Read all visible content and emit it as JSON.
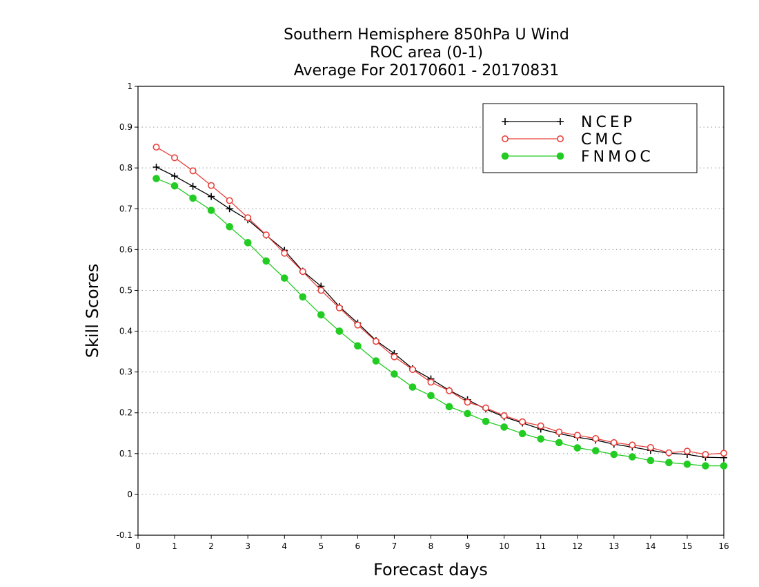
{
  "chart_data": {
    "type": "line",
    "title_lines": [
      "Southern Hemisphere 850hPa U Wind",
      "ROC area (0-1)",
      "Average For 20170601 - 20170831"
    ],
    "xlabel": "Forecast days",
    "ylabel": "Skill Scores",
    "xlim": [
      0,
      16
    ],
    "ylim": [
      -0.1,
      1
    ],
    "x_ticks": [
      0,
      1,
      2,
      3,
      4,
      5,
      6,
      7,
      8,
      9,
      10,
      11,
      12,
      13,
      14,
      15,
      16
    ],
    "x_tick_labels": [
      "0",
      "1",
      "2",
      "3",
      "4",
      "5",
      "6",
      "7",
      "8",
      "9",
      "10",
      "11",
      "12",
      "13",
      "14",
      "15",
      "16"
    ],
    "y_ticks": [
      -0.1,
      0,
      0.1,
      0.2,
      0.3,
      0.4,
      0.5,
      0.6,
      0.7,
      0.8,
      0.9,
      1
    ],
    "y_tick_labels": [
      "-0.1",
      "0",
      "0.1",
      "0.2",
      "0.3",
      "0.4",
      "0.5",
      "0.6",
      "0.7",
      "0.8",
      "0.9",
      "1"
    ],
    "grid": "dotted horizontal",
    "legend_position": "top-right",
    "x": [
      0.5,
      1,
      1.5,
      2,
      2.5,
      3,
      3.5,
      4,
      4.5,
      5,
      5.5,
      6,
      6.5,
      7,
      7.5,
      8,
      8.5,
      9,
      9.5,
      10,
      10.5,
      11,
      11.5,
      12,
      12.5,
      13,
      13.5,
      14,
      14.5,
      15,
      15.5,
      16
    ],
    "series": [
      {
        "name": "NCEP",
        "color": "#000000",
        "marker": "plus",
        "values": [
          0.802,
          0.78,
          0.755,
          0.73,
          0.7,
          0.673,
          0.635,
          0.598,
          0.547,
          0.51,
          0.46,
          0.42,
          0.377,
          0.345,
          0.308,
          0.283,
          0.255,
          0.232,
          0.209,
          0.19,
          0.175,
          0.16,
          0.149,
          0.14,
          0.133,
          0.123,
          0.116,
          0.108,
          0.101,
          0.098,
          0.091,
          0.09
        ]
      },
      {
        "name": "CMC",
        "color": "#e8413c",
        "marker": "open-circle",
        "values": [
          0.851,
          0.825,
          0.793,
          0.757,
          0.72,
          0.678,
          0.636,
          0.591,
          0.546,
          0.5,
          0.457,
          0.415,
          0.375,
          0.337,
          0.306,
          0.275,
          0.254,
          0.226,
          0.212,
          0.193,
          0.178,
          0.168,
          0.153,
          0.145,
          0.137,
          0.127,
          0.121,
          0.115,
          0.102,
          0.106,
          0.098,
          0.101
        ]
      },
      {
        "name": "FNMOC",
        "color": "#22cc22",
        "marker": "filled-circle",
        "values": [
          0.774,
          0.756,
          0.726,
          0.696,
          0.656,
          0.617,
          0.572,
          0.53,
          0.484,
          0.44,
          0.4,
          0.364,
          0.327,
          0.295,
          0.263,
          0.242,
          0.215,
          0.198,
          0.179,
          0.165,
          0.149,
          0.136,
          0.127,
          0.114,
          0.107,
          0.098,
          0.092,
          0.083,
          0.078,
          0.074,
          0.07,
          0.07
        ]
      }
    ]
  }
}
